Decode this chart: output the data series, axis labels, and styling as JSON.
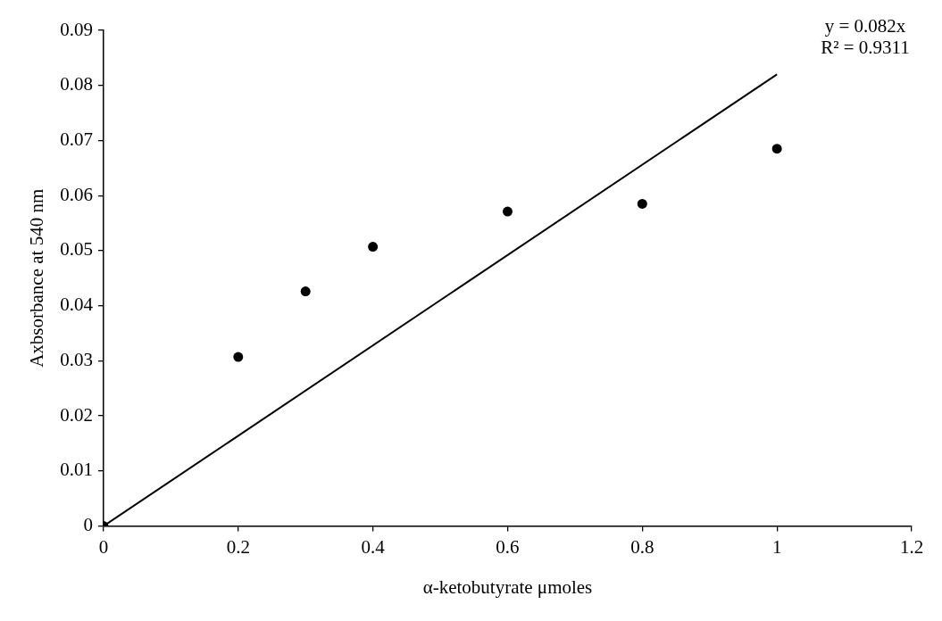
{
  "chart_data": {
    "type": "scatter",
    "xlabel": "α-ketobutyrate μmoles",
    "ylabel": "Axbsorbance at 540 nm",
    "xlim": [
      0,
      1.2
    ],
    "xticks": [
      0,
      0.2,
      0.4,
      0.6,
      0.8,
      1,
      1.2
    ],
    "ylim": [
      0,
      0.09
    ],
    "yticks": [
      0,
      0.01,
      0.02,
      0.03,
      0.04,
      0.05,
      0.06,
      0.07,
      0.08,
      0.09
    ],
    "marker": "circle",
    "annotations": [
      "y = 0.082x",
      "R² = 0.9311"
    ],
    "series": [
      {
        "type": "scatter",
        "color": "#000000",
        "x": [
          0,
          0.2,
          0.3,
          0.4,
          0.6,
          0.8,
          1
        ],
        "values": [
          0,
          0.0307,
          0.0426,
          0.0507,
          0.0571,
          0.0585,
          0.0685
        ]
      },
      {
        "type": "line",
        "color": "#000000",
        "x": [
          0,
          1
        ],
        "values": [
          0,
          0.082
        ],
        "line_style": "solid",
        "marker": "none"
      }
    ]
  }
}
